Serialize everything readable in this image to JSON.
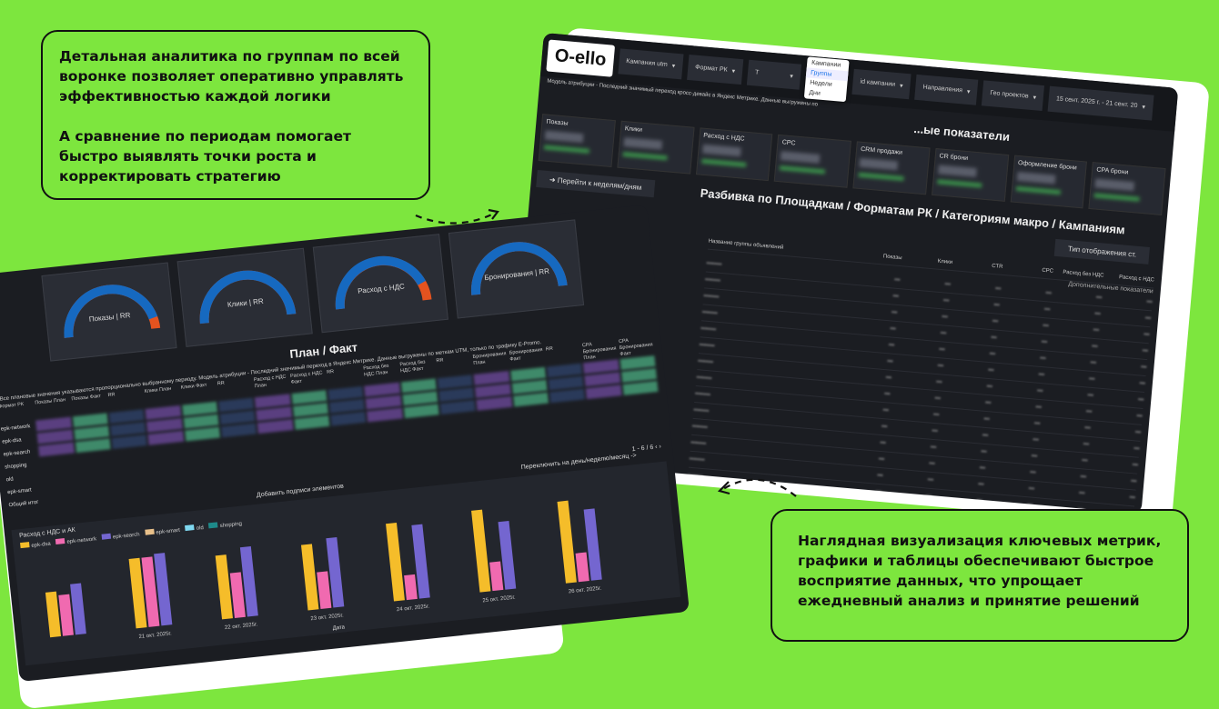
{
  "callouts": {
    "top": [
      "Детальная аналитика по группам по всей воронке позволяет оперативно управлять эффективностью каждой логики",
      "А сравнение по периодам помогает быстро выявлять точки роста и корректировать стратегию"
    ],
    "bottom": "Наглядная визуализация ключевых метрик, графики и таблицы обеспечивают быстрое восприятие данных, что упрощает ежедневный анализ и принятие решений"
  },
  "right_dash": {
    "logo": "O-ello",
    "filters": [
      "Кампания utm",
      "Формат РК",
      "Т",
      "id кампании",
      "Направления",
      "Гео проектов",
      "15 сент. 2025 г. - 21 сент. 20"
    ],
    "menu": [
      "Кампании",
      "Группы",
      "Недели",
      "Дни"
    ],
    "menu_selected": "Группы",
    "attribution_note": "Модель атрибуции - Последний значимый переход кросс-девайс в Яндекс Метрике. Данные выгружены по",
    "section_title": "...ые показатели",
    "kpis": [
      "Показы",
      "Клики",
      "Расход с НДС",
      "CPC",
      "CRM продажи",
      "CR брони",
      "Оформление брони",
      "CPA брони"
    ],
    "nav_button": "Перейти к неделям/дням",
    "breakdown_title": "Разбивка по Площадкам / Форматам РК / Категориям макро / Кампаниям",
    "display_type": "Тип отображения ст.",
    "columns": [
      "Название группы объявлений",
      "Показы",
      "Клики",
      "CTR",
      "CPC",
      "Расход без НДС",
      "Расход с НДС"
    ],
    "extra_metrics": "Дополнительные показатели"
  },
  "left_dash": {
    "gauges": [
      {
        "label": "Показы | RR",
        "value": 0.92
      },
      {
        "label": "Клики | RR",
        "value": 1.0
      },
      {
        "label": "Расход с НДС",
        "value": 0.87
      },
      {
        "label": "Бронирования | RR",
        "value": 1.0
      }
    ],
    "title": "План / Факт",
    "note": "*Все плановые значения указываются пропорционально выбранному периоду. Модель атрибуции - Последний значимый переход в Яндекс Метрике. Данные выгружены по меткам UTM, только по трафику E-Promo.",
    "columns": [
      "Формат РК",
      "Показы План",
      "Показы Факт",
      "RR",
      "Клики План",
      "Клики Факт",
      "RR",
      "Расход с НДС План",
      "Расход с НДС Факт",
      "RR",
      "Расход без НДС План",
      "Расход без НДС Факт",
      "RR",
      "Бронирования План",
      "Бронирования Факт",
      "RR",
      "CPA Бронирования План",
      "CPA Бронирования Факт"
    ],
    "rows": [
      "epk-network",
      "epk-dsa",
      "epk-search",
      "shopping",
      "old",
      "epk-smart",
      "Общий итог"
    ],
    "pagination": "1 - 6 / 6",
    "add_labels": "Добавить подписи элементов",
    "switch_period": "Переключить на день/неделю/месяц ->"
  },
  "chart_data": {
    "type": "bar",
    "title": "Расход с НДС и АК",
    "xlabel": "Дата",
    "legend": [
      {
        "name": "epk-dsa",
        "color": "#f5bd2a"
      },
      {
        "name": "epk-network",
        "color": "#f06ab0"
      },
      {
        "name": "epk-search",
        "color": "#7466d0"
      },
      {
        "name": "epk-smart",
        "color": "#e8c08a"
      },
      {
        "name": "old",
        "color": "#7fd8f0"
      },
      {
        "name": "shopping",
        "color": "#1e8a8a"
      }
    ],
    "categories": [
      "",
      "21 окт. 2025г.",
      "22 окт. 2025г.",
      "23 окт. 2025г.",
      "24 окт. 2025г.",
      "25 окт. 2025г.",
      "26 окт. 2025г."
    ],
    "series": [
      {
        "name": "epk-dsa",
        "values": [
          0.55,
          0.85,
          0.78,
          0.8,
          0.95,
          1.0,
          1.0
        ]
      },
      {
        "name": "epk-network",
        "values": [
          0.5,
          0.85,
          0.55,
          0.45,
          0.3,
          0.35,
          0.35
        ]
      },
      {
        "name": "epk-search",
        "values": [
          0.62,
          0.88,
          0.85,
          0.85,
          0.9,
          0.83,
          0.87
        ]
      }
    ]
  }
}
